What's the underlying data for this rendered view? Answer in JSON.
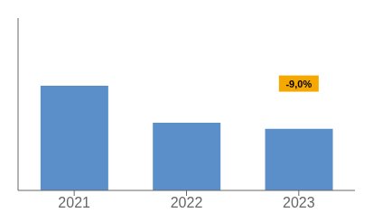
{
  "chart_data": {
    "type": "bar",
    "categories": [
      "2021",
      "2022",
      "2023"
    ],
    "values": [
      85,
      55,
      50
    ],
    "color": "#5B8FC9",
    "ylim": [
      0,
      140
    ],
    "tick_labels": "x",
    "annotations": [
      {
        "text": "-9,0%",
        "color": "#F5A800"
      }
    ]
  }
}
